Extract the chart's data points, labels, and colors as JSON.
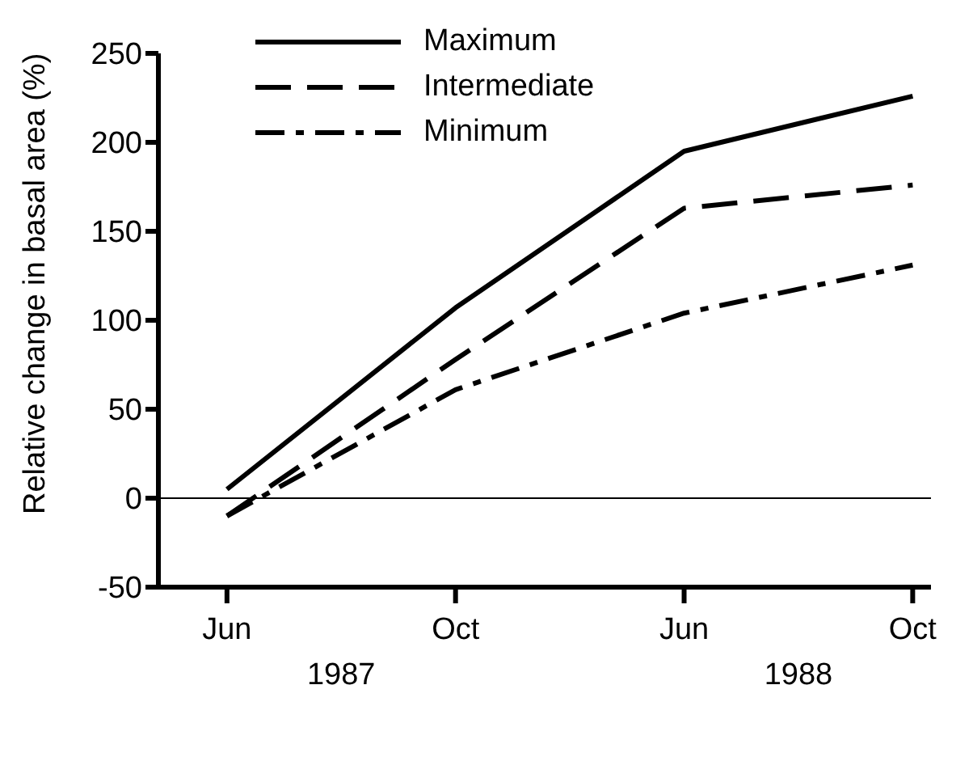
{
  "chart_data": {
    "type": "line",
    "ylabel": "Relative change in basal area (%)",
    "categories": [
      "Jun",
      "Oct",
      "Jun",
      "Oct"
    ],
    "annotations": [
      "1987",
      "1988"
    ],
    "series": [
      {
        "name": "Maximum",
        "color": "#000000",
        "line_style": "solid",
        "values": [
          5,
          107,
          195,
          226
        ]
      },
      {
        "name": "Intermediate",
        "color": "#000000",
        "line_style": "dashed",
        "values": [
          -10,
          78,
          163,
          176
        ]
      },
      {
        "name": "Minimum",
        "color": "#000000",
        "line_style": "dashdot",
        "values": [
          -10,
          61,
          104,
          131
        ]
      }
    ],
    "ylim": [
      -50,
      250
    ],
    "yticks": [
      -50,
      0,
      50,
      100,
      150,
      200,
      250
    ],
    "grid": false,
    "legend": "top left",
    "marker": "none",
    "ref_lines": [
      {
        "axis": "y",
        "value": 0,
        "color": "#000000"
      }
    ]
  }
}
